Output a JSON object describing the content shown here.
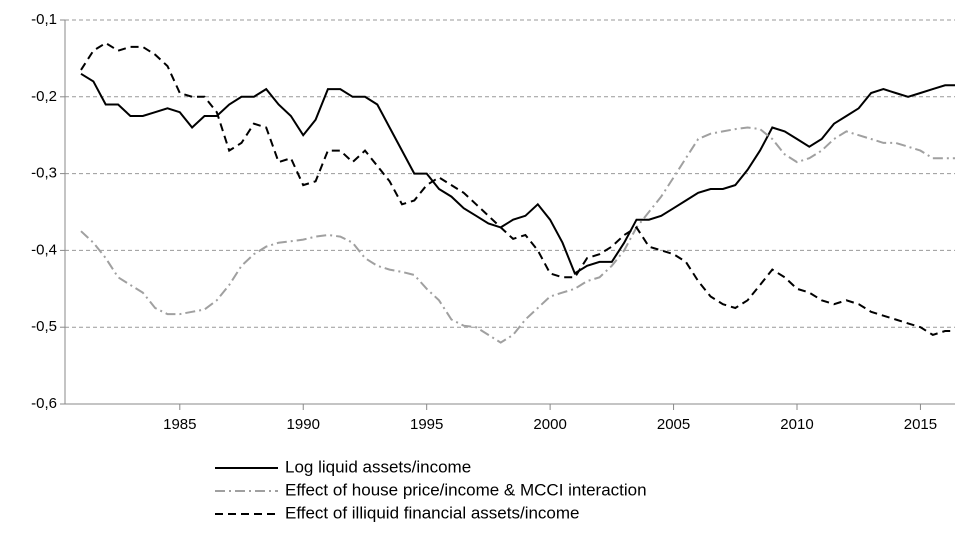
{
  "chart_data": {
    "type": "line",
    "x": [
      1981,
      1981.5,
      1982,
      1982.5,
      1983,
      1983.5,
      1984,
      1984.5,
      1985,
      1985.5,
      1986,
      1986.5,
      1987,
      1987.5,
      1988,
      1988.5,
      1989,
      1989.5,
      1990,
      1990.5,
      1991,
      1991.5,
      1992,
      1992.5,
      1993,
      1993.5,
      1994,
      1994.5,
      1995,
      1995.5,
      1996,
      1996.5,
      1997,
      1997.5,
      1998,
      1998.5,
      1999,
      1999.5,
      2000,
      2000.5,
      2001,
      2001.5,
      2002,
      2002.5,
      2003,
      2003.5,
      2004,
      2004.5,
      2005,
      2005.5,
      2006,
      2006.5,
      2007,
      2007.5,
      2008,
      2008.5,
      2009,
      2009.5,
      2010,
      2010.5,
      2011,
      2011.5,
      2012,
      2012.5,
      2013,
      2013.5,
      2014,
      2014.5,
      2015,
      2015.5,
      2016,
      2016.5
    ],
    "series": [
      {
        "name": "Log liquid assets/income",
        "color": "#000000",
        "dash": "solid",
        "values": [
          -0.17,
          -0.18,
          -0.21,
          -0.21,
          -0.225,
          -0.225,
          -0.22,
          -0.215,
          -0.22,
          -0.24,
          -0.225,
          -0.225,
          -0.21,
          -0.2,
          -0.2,
          -0.19,
          -0.21,
          -0.225,
          -0.25,
          -0.23,
          -0.19,
          -0.19,
          -0.2,
          -0.2,
          -0.21,
          -0.24,
          -0.27,
          -0.3,
          -0.3,
          -0.32,
          -0.33,
          -0.345,
          -0.355,
          -0.365,
          -0.37,
          -0.36,
          -0.355,
          -0.34,
          -0.36,
          -0.39,
          -0.43,
          -0.42,
          -0.415,
          -0.415,
          -0.39,
          -0.36,
          -0.36,
          -0.355,
          -0.345,
          -0.335,
          -0.325,
          -0.32,
          -0.32,
          -0.315,
          -0.295,
          -0.27,
          -0.24,
          -0.245,
          -0.255,
          -0.265,
          -0.255,
          -0.235,
          -0.225,
          -0.215,
          -0.195,
          -0.19,
          -0.195,
          -0.2,
          -0.195,
          -0.19,
          -0.185,
          -0.185
        ]
      },
      {
        "name": "Effect of house price/income & MCCI interaction",
        "color": "#a0a0a0",
        "dash": "dashdot",
        "values": [
          -0.375,
          -0.39,
          -0.41,
          -0.435,
          -0.445,
          -0.455,
          -0.475,
          -0.483,
          -0.483,
          -0.48,
          -0.477,
          -0.465,
          -0.445,
          -0.42,
          -0.405,
          -0.395,
          -0.39,
          -0.388,
          -0.386,
          -0.382,
          -0.38,
          -0.382,
          -0.39,
          -0.41,
          -0.42,
          -0.425,
          -0.428,
          -0.432,
          -0.45,
          -0.465,
          -0.49,
          -0.498,
          -0.5,
          -0.51,
          -0.52,
          -0.51,
          -0.49,
          -0.475,
          -0.46,
          -0.455,
          -0.45,
          -0.44,
          -0.435,
          -0.42,
          -0.4,
          -0.37,
          -0.35,
          -0.33,
          -0.305,
          -0.28,
          -0.255,
          -0.248,
          -0.245,
          -0.242,
          -0.24,
          -0.242,
          -0.255,
          -0.275,
          -0.285,
          -0.28,
          -0.27,
          -0.255,
          -0.245,
          -0.25,
          -0.255,
          -0.26,
          -0.26,
          -0.265,
          -0.27,
          -0.28,
          -0.28,
          -0.28
        ]
      },
      {
        "name": "Effect of illiquid financial assets/income",
        "color": "#000000",
        "dash": "dashed",
        "values": [
          -0.165,
          -0.14,
          -0.13,
          -0.14,
          -0.135,
          -0.135,
          -0.145,
          -0.16,
          -0.195,
          -0.2,
          -0.2,
          -0.22,
          -0.27,
          -0.26,
          -0.235,
          -0.24,
          -0.285,
          -0.28,
          -0.315,
          -0.31,
          -0.27,
          -0.27,
          -0.285,
          -0.27,
          -0.29,
          -0.31,
          -0.34,
          -0.335,
          -0.315,
          -0.305,
          -0.315,
          -0.325,
          -0.34,
          -0.355,
          -0.37,
          -0.385,
          -0.38,
          -0.4,
          -0.43,
          -0.435,
          -0.435,
          -0.41,
          -0.405,
          -0.395,
          -0.38,
          -0.37,
          -0.395,
          -0.4,
          -0.405,
          -0.415,
          -0.44,
          -0.46,
          -0.47,
          -0.475,
          -0.465,
          -0.445,
          -0.425,
          -0.435,
          -0.45,
          -0.455,
          -0.465,
          -0.47,
          -0.465,
          -0.47,
          -0.48,
          -0.485,
          -0.49,
          -0.495,
          -0.5,
          -0.51,
          -0.505,
          -0.505
        ]
      }
    ],
    "xlim": [
      1980.35,
      2016.4
    ],
    "xticks": [
      1985,
      1990,
      1995,
      2000,
      2005,
      2010,
      2015
    ],
    "ylim": [
      -0.6,
      -0.1
    ],
    "yticks": [
      {
        "value": -0.6,
        "label": "-0,6"
      },
      {
        "value": -0.5,
        "label": "-0,5"
      },
      {
        "value": -0.4,
        "label": "-0,4"
      },
      {
        "value": -0.3,
        "label": "-0,3"
      },
      {
        "value": -0.2,
        "label": "-0,2"
      },
      {
        "value": -0.1,
        "label": "-0,1"
      }
    ],
    "grid": true,
    "legend": "bottom"
  }
}
